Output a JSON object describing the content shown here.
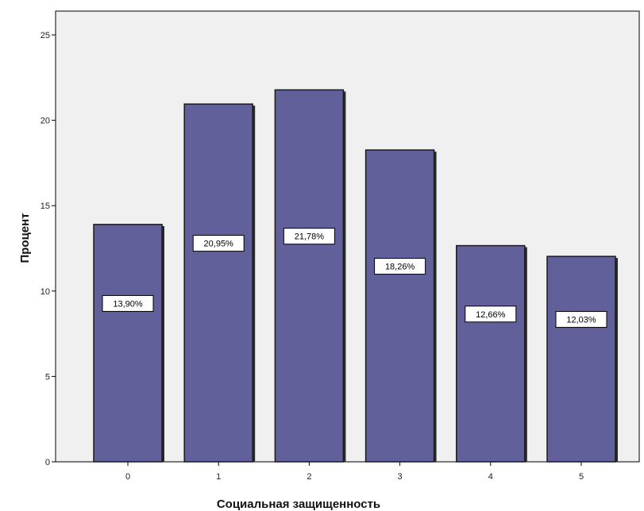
{
  "chart_data": {
    "type": "bar",
    "categories": [
      "0",
      "1",
      "2",
      "3",
      "4",
      "5"
    ],
    "values": [
      13.9,
      20.95,
      21.78,
      18.26,
      12.66,
      12.03
    ],
    "data_labels": [
      "13,90%",
      "20,95%",
      "21,78%",
      "18,26%",
      "12,66%",
      "12,03%"
    ],
    "xlabel": "Социальная защищенность",
    "ylabel": "Процент",
    "ylim": [
      0,
      25
    ],
    "yticks": [
      0,
      5,
      10,
      15,
      20,
      25
    ],
    "ytick_labels": [
      "0",
      "5",
      "10",
      "15",
      "20",
      "25"
    ],
    "grid": false,
    "colors": {
      "plot_background": "#f0f0f0",
      "bar_fill": "#62609a",
      "bar_stroke": "#1a1a1a",
      "label_box": "#ffffff"
    }
  }
}
